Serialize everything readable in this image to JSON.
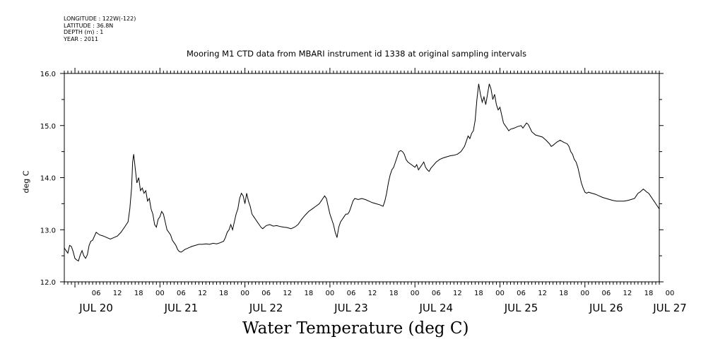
{
  "header": {
    "longitude": "LONGITUDE : 122W(-122)",
    "latitude": "LATITUDE : 36.8N",
    "depth": "DEPTH (m) : 1",
    "year": "YEAR : 2011"
  },
  "chart_data": {
    "type": "line",
    "title": "Mooring M1 CTD data from MBARI instrument id 1338 at original sampling intervals",
    "xlabel": "Water Temperature (deg C)",
    "ylabel": "deg C",
    "ylim": [
      12.0,
      16.0
    ],
    "yticks": [
      "12.0",
      "13.0",
      "14.0",
      "15.0",
      "16.0"
    ],
    "xlim_hours": [
      -3,
      165
    ],
    "x_hour_ticks": [
      {
        "h": 6,
        "label": "06"
      },
      {
        "h": 12,
        "label": "12"
      },
      {
        "h": 18,
        "label": "18"
      },
      {
        "h": 24,
        "label": "00"
      },
      {
        "h": 30,
        "label": "06"
      },
      {
        "h": 36,
        "label": "12"
      },
      {
        "h": 42,
        "label": "18"
      },
      {
        "h": 48,
        "label": "00"
      },
      {
        "h": 54,
        "label": "06"
      },
      {
        "h": 60,
        "label": "12"
      },
      {
        "h": 66,
        "label": "18"
      },
      {
        "h": 72,
        "label": "00"
      },
      {
        "h": 78,
        "label": "06"
      },
      {
        "h": 84,
        "label": "12"
      },
      {
        "h": 90,
        "label": "18"
      },
      {
        "h": 96,
        "label": "00"
      },
      {
        "h": 102,
        "label": "06"
      },
      {
        "h": 108,
        "label": "12"
      },
      {
        "h": 114,
        "label": "18"
      },
      {
        "h": 120,
        "label": "00"
      },
      {
        "h": 126,
        "label": "06"
      },
      {
        "h": 132,
        "label": "12"
      },
      {
        "h": 138,
        "label": "18"
      },
      {
        "h": 144,
        "label": "00"
      },
      {
        "h": 150,
        "label": "06"
      },
      {
        "h": 156,
        "label": "12"
      },
      {
        "h": 162,
        "label": "18"
      },
      {
        "h": 168,
        "label": "00"
      }
    ],
    "day_labels": [
      {
        "h": 6,
        "label": "JUL 20"
      },
      {
        "h": 30,
        "label": "JUL 21"
      },
      {
        "h": 54,
        "label": "JUL 22"
      },
      {
        "h": 78,
        "label": "JUL 23"
      },
      {
        "h": 102,
        "label": "JUL 24"
      },
      {
        "h": 126,
        "label": "JUL 25"
      },
      {
        "h": 150,
        "label": "JUL 26"
      },
      {
        "h": 168,
        "label": "JUL 27"
      }
    ],
    "series": [
      {
        "points": [
          [
            -3,
            12.65
          ],
          [
            -2.5,
            12.6
          ],
          [
            -2,
            12.55
          ],
          [
            -1.5,
            12.7
          ],
          [
            -1,
            12.68
          ],
          [
            -0.5,
            12.58
          ],
          [
            0,
            12.45
          ],
          [
            0.5,
            12.42
          ],
          [
            1,
            12.4
          ],
          [
            1.5,
            12.52
          ],
          [
            2,
            12.6
          ],
          [
            2.5,
            12.5
          ],
          [
            3,
            12.45
          ],
          [
            3.5,
            12.52
          ],
          [
            4,
            12.7
          ],
          [
            4.5,
            12.78
          ],
          [
            5,
            12.8
          ],
          [
            6,
            12.95
          ],
          [
            7,
            12.9
          ],
          [
            8,
            12.88
          ],
          [
            9,
            12.85
          ],
          [
            10,
            12.82
          ],
          [
            11,
            12.85
          ],
          [
            12,
            12.88
          ],
          [
            13,
            12.95
          ],
          [
            14,
            13.05
          ],
          [
            15,
            13.15
          ],
          [
            15.5,
            13.4
          ],
          [
            16,
            13.8
          ],
          [
            16.3,
            14.3
          ],
          [
            16.6,
            14.45
          ],
          [
            17,
            14.2
          ],
          [
            17.5,
            13.9
          ],
          [
            18,
            14.0
          ],
          [
            18.5,
            13.75
          ],
          [
            19,
            13.8
          ],
          [
            19.5,
            13.7
          ],
          [
            20,
            13.75
          ],
          [
            20.5,
            13.55
          ],
          [
            21,
            13.6
          ],
          [
            21.5,
            13.4
          ],
          [
            22,
            13.3
          ],
          [
            22.5,
            13.1
          ],
          [
            23,
            13.05
          ],
          [
            23.5,
            13.2
          ],
          [
            24,
            13.25
          ],
          [
            24.5,
            13.35
          ],
          [
            25,
            13.3
          ],
          [
            25.5,
            13.15
          ],
          [
            26,
            13.0
          ],
          [
            26.5,
            12.95
          ],
          [
            27,
            12.9
          ],
          [
            27.5,
            12.8
          ],
          [
            28,
            12.75
          ],
          [
            28.5,
            12.7
          ],
          [
            29,
            12.62
          ],
          [
            29.5,
            12.58
          ],
          [
            30,
            12.57
          ],
          [
            31,
            12.62
          ],
          [
            32,
            12.65
          ],
          [
            33,
            12.68
          ],
          [
            34,
            12.7
          ],
          [
            35,
            12.72
          ],
          [
            36,
            12.72
          ],
          [
            37,
            12.73
          ],
          [
            38,
            12.72
          ],
          [
            39,
            12.74
          ],
          [
            40,
            12.73
          ],
          [
            41,
            12.75
          ],
          [
            42,
            12.78
          ],
          [
            42.5,
            12.85
          ],
          [
            43,
            12.95
          ],
          [
            43.5,
            13.0
          ],
          [
            44,
            13.1
          ],
          [
            44.5,
            13.0
          ],
          [
            45,
            13.15
          ],
          [
            45.5,
            13.3
          ],
          [
            46,
            13.4
          ],
          [
            46.5,
            13.6
          ],
          [
            47,
            13.7
          ],
          [
            47.5,
            13.65
          ],
          [
            48,
            13.5
          ],
          [
            48.5,
            13.7
          ],
          [
            49,
            13.55
          ],
          [
            49.5,
            13.45
          ],
          [
            50,
            13.3
          ],
          [
            50.5,
            13.25
          ],
          [
            51,
            13.2
          ],
          [
            51.5,
            13.15
          ],
          [
            52,
            13.1
          ],
          [
            52.5,
            13.05
          ],
          [
            53,
            13.02
          ],
          [
            54,
            13.08
          ],
          [
            55,
            13.1
          ],
          [
            56,
            13.07
          ],
          [
            57,
            13.08
          ],
          [
            58,
            13.06
          ],
          [
            59,
            13.05
          ],
          [
            60,
            13.04
          ],
          [
            61,
            13.02
          ],
          [
            62,
            13.05
          ],
          [
            63,
            13.1
          ],
          [
            64,
            13.2
          ],
          [
            65,
            13.28
          ],
          [
            66,
            13.35
          ],
          [
            67,
            13.4
          ],
          [
            68,
            13.45
          ],
          [
            69,
            13.5
          ],
          [
            69.5,
            13.55
          ],
          [
            70,
            13.6
          ],
          [
            70.5,
            13.65
          ],
          [
            71,
            13.6
          ],
          [
            71.5,
            13.45
          ],
          [
            72,
            13.3
          ],
          [
            72.5,
            13.2
          ],
          [
            73,
            13.1
          ],
          [
            73.5,
            12.95
          ],
          [
            74,
            12.85
          ],
          [
            74.5,
            13.05
          ],
          [
            75,
            13.15
          ],
          [
            75.5,
            13.2
          ],
          [
            76,
            13.25
          ],
          [
            76.5,
            13.3
          ],
          [
            77,
            13.3
          ],
          [
            77.5,
            13.35
          ],
          [
            78,
            13.45
          ],
          [
            78.5,
            13.55
          ],
          [
            79,
            13.6
          ],
          [
            80,
            13.58
          ],
          [
            81,
            13.6
          ],
          [
            82,
            13.58
          ],
          [
            83,
            13.55
          ],
          [
            84,
            13.52
          ],
          [
            85,
            13.5
          ],
          [
            86,
            13.48
          ],
          [
            87,
            13.45
          ],
          [
            87.5,
            13.55
          ],
          [
            88,
            13.7
          ],
          [
            88.5,
            13.9
          ],
          [
            89,
            14.05
          ],
          [
            89.5,
            14.15
          ],
          [
            90,
            14.2
          ],
          [
            90.5,
            14.3
          ],
          [
            91,
            14.4
          ],
          [
            91.5,
            14.5
          ],
          [
            92,
            14.52
          ],
          [
            92.5,
            14.5
          ],
          [
            93,
            14.45
          ],
          [
            93.5,
            14.35
          ],
          [
            94,
            14.3
          ],
          [
            95,
            14.25
          ],
          [
            96,
            14.2
          ],
          [
            96.5,
            14.25
          ],
          [
            97,
            14.15
          ],
          [
            97.5,
            14.2
          ],
          [
            98,
            14.25
          ],
          [
            98.5,
            14.3
          ],
          [
            99,
            14.2
          ],
          [
            99.5,
            14.15
          ],
          [
            100,
            14.12
          ],
          [
            100.5,
            14.18
          ],
          [
            101,
            14.22
          ],
          [
            102,
            14.3
          ],
          [
            103,
            14.35
          ],
          [
            104,
            14.38
          ],
          [
            105,
            14.4
          ],
          [
            106,
            14.42
          ],
          [
            107,
            14.43
          ],
          [
            108,
            14.45
          ],
          [
            109,
            14.5
          ],
          [
            110,
            14.6
          ],
          [
            110.5,
            14.7
          ],
          [
            111,
            14.8
          ],
          [
            111.5,
            14.75
          ],
          [
            112,
            14.85
          ],
          [
            112.5,
            14.9
          ],
          [
            113,
            15.1
          ],
          [
            113.5,
            15.5
          ],
          [
            114,
            15.8
          ],
          [
            114.5,
            15.6
          ],
          [
            115,
            15.45
          ],
          [
            115.5,
            15.55
          ],
          [
            116,
            15.4
          ],
          [
            116.5,
            15.6
          ],
          [
            117,
            15.8
          ],
          [
            117.5,
            15.7
          ],
          [
            118,
            15.5
          ],
          [
            118.5,
            15.6
          ],
          [
            119,
            15.4
          ],
          [
            119.5,
            15.3
          ],
          [
            120,
            15.35
          ],
          [
            120.5,
            15.2
          ],
          [
            121,
            15.05
          ],
          [
            121.5,
            15.0
          ],
          [
            122,
            14.95
          ],
          [
            122.5,
            14.9
          ],
          [
            123,
            14.93
          ],
          [
            124,
            14.95
          ],
          [
            125,
            14.98
          ],
          [
            126,
            15.0
          ],
          [
            126.5,
            14.95
          ],
          [
            127,
            15.0
          ],
          [
            127.5,
            15.05
          ],
          [
            128,
            15.02
          ],
          [
            128.5,
            14.95
          ],
          [
            129,
            14.88
          ],
          [
            129.5,
            14.85
          ],
          [
            130,
            14.82
          ],
          [
            131,
            14.8
          ],
          [
            132,
            14.78
          ],
          [
            133,
            14.72
          ],
          [
            134,
            14.65
          ],
          [
            134.5,
            14.6
          ],
          [
            135,
            14.62
          ],
          [
            135.5,
            14.65
          ],
          [
            136,
            14.68
          ],
          [
            136.5,
            14.7
          ],
          [
            137,
            14.72
          ],
          [
            138,
            14.68
          ],
          [
            139,
            14.65
          ],
          [
            139.5,
            14.6
          ],
          [
            140,
            14.5
          ],
          [
            140.5,
            14.45
          ],
          [
            141,
            14.35
          ],
          [
            141.5,
            14.3
          ],
          [
            142,
            14.2
          ],
          [
            142.5,
            14.05
          ],
          [
            143,
            13.9
          ],
          [
            143.5,
            13.8
          ],
          [
            144,
            13.72
          ],
          [
            144.5,
            13.7
          ],
          [
            145,
            13.72
          ],
          [
            146,
            13.7
          ],
          [
            147,
            13.68
          ],
          [
            148,
            13.65
          ],
          [
            149,
            13.62
          ],
          [
            150,
            13.6
          ],
          [
            151,
            13.58
          ],
          [
            152,
            13.56
          ],
          [
            153,
            13.55
          ],
          [
            154,
            13.55
          ],
          [
            155,
            13.55
          ],
          [
            156,
            13.56
          ],
          [
            157,
            13.58
          ],
          [
            158,
            13.6
          ],
          [
            158.5,
            13.65
          ],
          [
            159,
            13.7
          ],
          [
            159.5,
            13.72
          ],
          [
            160,
            13.75
          ],
          [
            160.5,
            13.78
          ],
          [
            161,
            13.75
          ],
          [
            161.5,
            13.72
          ],
          [
            162,
            13.7
          ],
          [
            162.5,
            13.65
          ],
          [
            163,
            13.6
          ],
          [
            163.5,
            13.55
          ],
          [
            164,
            13.5
          ],
          [
            164.5,
            13.45
          ],
          [
            165,
            13.4
          ]
        ]
      }
    ]
  }
}
